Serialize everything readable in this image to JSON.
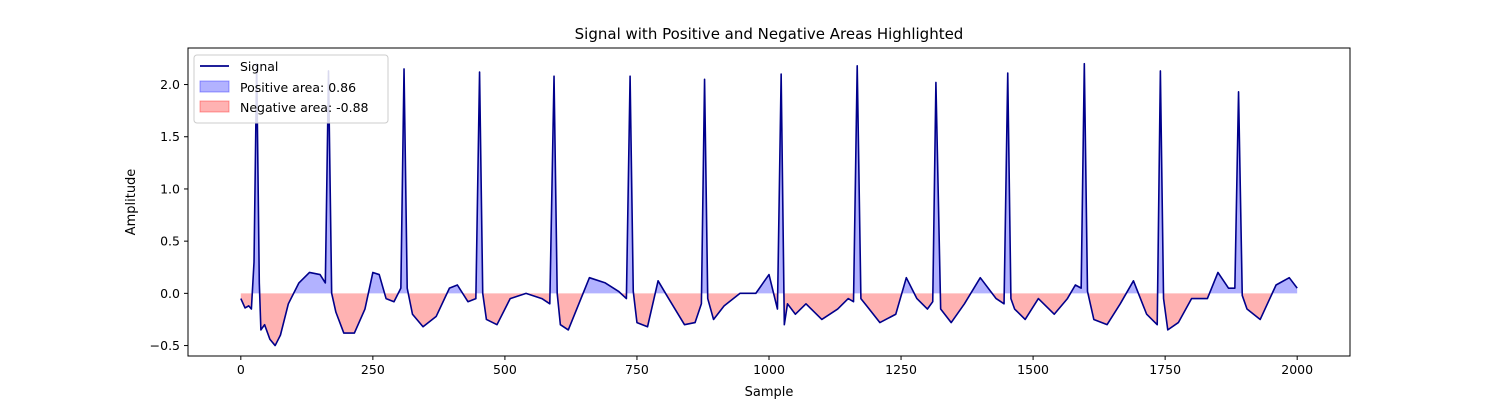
{
  "chart_data": {
    "type": "area",
    "title": "Signal with Positive and Negative Areas Highlighted",
    "xlabel": "Sample",
    "ylabel": "Amplitude",
    "xlim": [
      -100,
      2100
    ],
    "ylim": [
      -0.6,
      2.35
    ],
    "xticks": [
      0,
      250,
      500,
      750,
      1000,
      1250,
      1500,
      1750,
      2000
    ],
    "yticks": [
      -0.5,
      0.0,
      0.5,
      1.0,
      1.5,
      2.0
    ],
    "xtick_labels": [
      "0",
      "250",
      "500",
      "750",
      "1000",
      "1250",
      "1500",
      "1750",
      "2000"
    ],
    "ytick_labels": [
      "−0.5",
      "0.0",
      "0.5",
      "1.0",
      "1.5",
      "2.0"
    ],
    "legend_position": "top-left",
    "series": [
      {
        "name": "Signal",
        "style": "line",
        "color": "#00008b"
      },
      {
        "name": "Positive area: 0.86",
        "style": "fill",
        "color": "#0000ff"
      },
      {
        "name": "Negative area: -0.88",
        "style": "fill",
        "color": "#ff0000"
      }
    ],
    "signal": {
      "x": [
        0,
        8,
        15,
        20,
        25,
        30,
        35,
        38,
        45,
        55,
        65,
        75,
        90,
        110,
        130,
        150,
        160,
        166,
        172,
        180,
        195,
        215,
        235,
        250,
        262,
        275,
        290,
        303,
        309,
        315,
        325,
        345,
        370,
        395,
        410,
        430,
        445,
        452,
        458,
        465,
        485,
        510,
        540,
        570,
        585,
        593,
        599,
        605,
        620,
        640,
        660,
        690,
        715,
        730,
        737,
        743,
        750,
        770,
        790,
        810,
        840,
        860,
        872,
        878,
        884,
        895,
        915,
        945,
        975,
        1000,
        1016,
        1023,
        1029,
        1035,
        1050,
        1070,
        1100,
        1130,
        1150,
        1160,
        1167,
        1174,
        1185,
        1210,
        1240,
        1260,
        1280,
        1300,
        1310,
        1316,
        1325,
        1345,
        1370,
        1400,
        1430,
        1445,
        1452,
        1458,
        1465,
        1485,
        1510,
        1540,
        1565,
        1580,
        1591,
        1597,
        1603,
        1615,
        1640,
        1665,
        1690,
        1715,
        1735,
        1741,
        1747,
        1755,
        1775,
        1800,
        1830,
        1850,
        1870,
        1882,
        1889,
        1896,
        1905,
        1930,
        1960,
        1985,
        2000
      ],
      "y": [
        -0.05,
        -0.14,
        -0.12,
        -0.15,
        0.3,
        2.2,
        0.1,
        -0.35,
        -0.3,
        -0.44,
        -0.5,
        -0.4,
        -0.1,
        0.1,
        0.2,
        0.18,
        0.1,
        2.13,
        0.0,
        -0.18,
        -0.38,
        -0.38,
        -0.15,
        0.2,
        0.18,
        -0.05,
        -0.08,
        0.05,
        2.15,
        0.05,
        -0.2,
        -0.32,
        -0.22,
        0.05,
        0.08,
        -0.08,
        -0.05,
        2.12,
        0.0,
        -0.25,
        -0.3,
        -0.05,
        0.0,
        -0.05,
        -0.1,
        2.08,
        0.0,
        -0.3,
        -0.35,
        -0.1,
        0.15,
        0.1,
        0.02,
        -0.05,
        2.08,
        0.02,
        -0.28,
        -0.32,
        0.12,
        -0.05,
        -0.3,
        -0.28,
        -0.1,
        2.05,
        -0.05,
        -0.25,
        -0.12,
        0.0,
        0.0,
        0.18,
        -0.15,
        2.1,
        -0.3,
        -0.1,
        -0.2,
        -0.1,
        -0.25,
        -0.15,
        -0.05,
        -0.08,
        2.18,
        -0.05,
        -0.12,
        -0.28,
        -0.2,
        0.15,
        -0.05,
        -0.15,
        -0.08,
        2.02,
        -0.15,
        -0.28,
        -0.1,
        0.15,
        -0.05,
        -0.1,
        2.11,
        -0.05,
        -0.15,
        -0.25,
        -0.05,
        -0.2,
        -0.05,
        0.08,
        0.05,
        2.2,
        0.02,
        -0.25,
        -0.3,
        -0.1,
        0.12,
        -0.2,
        -0.3,
        2.13,
        -0.05,
        -0.35,
        -0.28,
        -0.05,
        -0.05,
        0.2,
        0.05,
        0.05,
        1.93,
        -0.02,
        -0.15,
        -0.25,
        0.08,
        0.15,
        0.05
      ]
    }
  }
}
